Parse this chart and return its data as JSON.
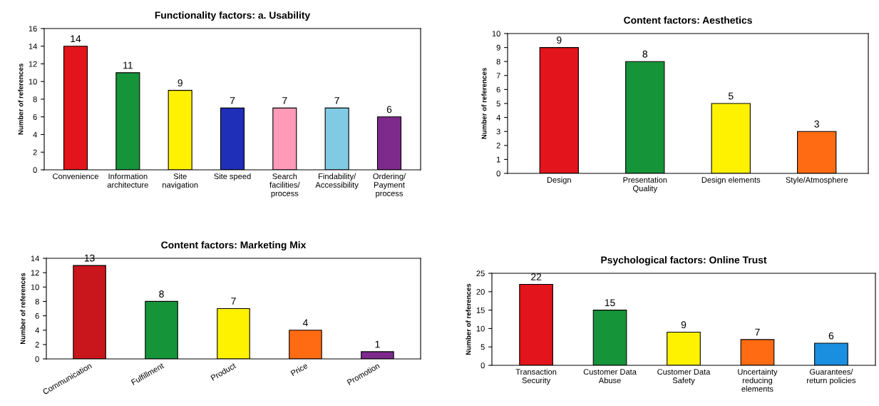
{
  "chart_data": [
    {
      "type": "bar",
      "title": "Functionality factors: a. Usability",
      "ylabel": "Number of references",
      "categories": [
        "Convenience",
        "Information\narchitecture",
        "Site\nnavigation",
        "Site speed",
        "Search\nfacilities/\nprocess",
        "Findability/\nAccessibility",
        "Ordering/\nPayment\nprocess"
      ],
      "values": [
        14,
        11,
        9,
        7,
        7,
        7,
        6
      ],
      "colors": [
        "#e3141b",
        "#16943a",
        "#fff200",
        "#1f2fb8",
        "#ff9ab8",
        "#80cbe3",
        "#7e2a8c"
      ],
      "ylim": [
        0,
        16
      ],
      "yticks": [
        0,
        2,
        4,
        6,
        8,
        10,
        12,
        14,
        16
      ],
      "data_labels": true,
      "grid": false,
      "legend": false
    },
    {
      "type": "bar",
      "title": "Content factors: Aesthetics",
      "ylabel": "Number of references",
      "categories": [
        "Design",
        "Presentation\nQuality",
        "Design elements",
        "Style/Atmosphere"
      ],
      "values": [
        9,
        8,
        5,
        3
      ],
      "colors": [
        "#e3141b",
        "#16943a",
        "#fff200",
        "#ff6b12"
      ],
      "ylim": [
        0,
        10
      ],
      "yticks": [
        0,
        1,
        2,
        3,
        4,
        5,
        6,
        7,
        8,
        9,
        10
      ],
      "data_labels": true,
      "grid": false,
      "legend": false
    },
    {
      "type": "bar",
      "title": "Content factors: Marketing Mix",
      "ylabel": "Number of references",
      "categories": [
        "Communication",
        "Fulfillment",
        "Product",
        "Price",
        "Promotion"
      ],
      "values": [
        13,
        8,
        7,
        4,
        1
      ],
      "colors": [
        "#c9161c",
        "#16943a",
        "#fff200",
        "#ff6b12",
        "#7e2a8c"
      ],
      "ylim": [
        0,
        14
      ],
      "yticks": [
        0,
        2,
        4,
        6,
        8,
        10,
        12,
        14
      ],
      "data_labels": true,
      "grid": false,
      "legend": false
    },
    {
      "type": "bar",
      "title": "Psychological factors: Online Trust",
      "ylabel": "Number of references",
      "categories": [
        "Transaction\nSecurity",
        "Customer Data\nAbuse",
        "Customer Data\nSafety",
        "Uncertainty\nreducing\nelements",
        "Guarantees/\nreturn policies"
      ],
      "values": [
        22,
        15,
        9,
        7,
        6
      ],
      "colors": [
        "#e3141b",
        "#16943a",
        "#fff200",
        "#ff6b12",
        "#1a8fe0"
      ],
      "ylim": [
        0,
        25
      ],
      "yticks": [
        0,
        5,
        10,
        15,
        20,
        25
      ],
      "data_labels": true,
      "grid": false,
      "legend": false
    }
  ]
}
